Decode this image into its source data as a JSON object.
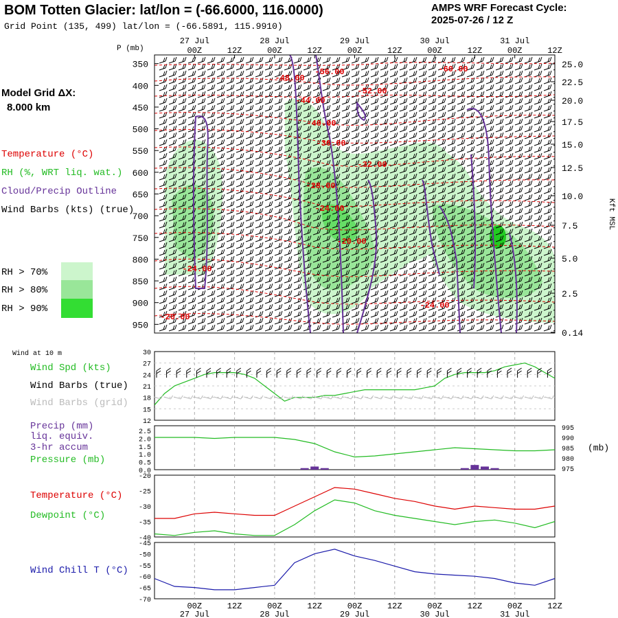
{
  "header": {
    "title": "BOM Totten Glacier:  lat/lon = (-66.6000, 116.0000)",
    "subtitle": "Grid Point (135, 499) lat/lon = (-66.5891, 115.9910)",
    "cycle_line1": "AMPS WRF Forecast Cycle:",
    "cycle_line2": "2025-07-26 / 12  Z"
  },
  "time_axis": {
    "tick_labels": [
      "00Z",
      "12Z",
      "00Z",
      "12Z",
      "00Z",
      "12Z",
      "00Z",
      "12Z",
      "00Z",
      "12Z"
    ],
    "date_labels": [
      "27 Jul",
      "28 Jul",
      "29 Jul",
      "30 Jul",
      "31 Jul"
    ]
  },
  "left_legend": {
    "model_grid_line1": "Model Grid ΔX:",
    "model_grid_line2": "8.000 km",
    "temperature": "Temperature (°C)",
    "rh": "RH (%, WRT liq. wat.)",
    "cloud": "Cloud/Precip Outline",
    "wind_barbs": "Wind Barbs (kts) (true)",
    "rh70": "RH > 70%",
    "rh80": "RH > 80%",
    "rh90": "RH > 90%"
  },
  "colors": {
    "rh70": "#ccf5cc",
    "rh80": "#99e699",
    "rh90": "#33dd33",
    "temperature": "#dd0000",
    "cloud": "#663399",
    "wind_speed": "#22bb22",
    "dewpoint": "#22bb22",
    "wind_chill": "#1a1aaa",
    "precip": "#663399"
  },
  "chart_data": [
    {
      "type": "cross-section",
      "ylabel": "P (mb)",
      "ylabel_right": "Kft MSL",
      "ylim": [
        970,
        330
      ],
      "pressure_ticks": [
        "350",
        "400",
        "450",
        "500",
        "550",
        "600",
        "650",
        "700",
        "750",
        "800",
        "850",
        "900",
        "950"
      ],
      "height_ticks": [
        "25.0",
        "22.5",
        "20.0",
        "17.5",
        "15.0",
        "12.5",
        "10.0",
        "7.5",
        "5.0",
        "2.5",
        "0.14"
      ],
      "temperature_labels": [
        "-60.00",
        "-56.00",
        "-52.00",
        "-48.00",
        "-44.00",
        "-40.00",
        "-36.00",
        "-32.00",
        "-28.00",
        "-24.00",
        "-20.00",
        "-24.00",
        "-24.00",
        "-20.00"
      ]
    },
    {
      "type": "line",
      "header": "Wind at 10 m",
      "label_speed": "Wind Spd (kts)",
      "label_barbs_true": "Wind Barbs (true)",
      "label_barbs_grid": "Wind Barbs (grid)",
      "ylim": [
        12,
        30
      ],
      "y_ticks": [
        "30",
        "27",
        "24",
        "21",
        "18",
        "15",
        "12"
      ],
      "x_hours": [
        0,
        3,
        6,
        9,
        12,
        15,
        18,
        21,
        24,
        27,
        30,
        33,
        36,
        39,
        42,
        45,
        48,
        51,
        54,
        57,
        60,
        63,
        66,
        69,
        72,
        75,
        78,
        81,
        84,
        87,
        90,
        93,
        96,
        99,
        102,
        105,
        108,
        111,
        114,
        117,
        120
      ],
      "wind_speed": [
        16,
        19,
        21,
        22,
        23,
        24,
        24.5,
        24.5,
        24.5,
        24,
        23,
        21,
        19,
        17,
        18,
        18,
        18,
        18.5,
        18.5,
        19,
        19.5,
        20,
        20,
        20,
        20,
        20,
        20,
        20.5,
        21,
        23,
        24,
        24.5,
        24.5,
        24.5,
        25,
        26,
        26.5,
        27,
        26,
        24.5,
        23
      ]
    },
    {
      "type": "line",
      "label_precip": "Precip (mm)",
      "label_liq": "liq. equiv.",
      "label_accum": "3-hr accum",
      "label_pressure": "Pressure (mb)",
      "ylabel_right": "(mb)",
      "precip_ylim": [
        0,
        2.5
      ],
      "pressure_ylim": [
        975,
        995
      ],
      "y_ticks_left": [
        "2.5",
        "2.0",
        "1.5",
        "1.0",
        "0.5",
        "0.0"
      ],
      "y_ticks_right": [
        "995",
        "990",
        "985",
        "980",
        "975"
      ],
      "x_hours": [
        0,
        6,
        12,
        18,
        24,
        30,
        36,
        42,
        48,
        54,
        60,
        66,
        72,
        78,
        84,
        90,
        96,
        102,
        108,
        114,
        120
      ],
      "pressure": [
        990,
        990,
        990,
        989.5,
        990,
        990,
        990,
        989,
        987,
        983,
        980.5,
        981,
        982,
        983,
        984,
        985,
        984.5,
        984,
        983.5,
        983.5,
        984
      ],
      "precip_bars": [
        {
          "hour": 45,
          "value": 0.1
        },
        {
          "hour": 48,
          "value": 0.2
        },
        {
          "hour": 51,
          "value": 0.1
        },
        {
          "hour": 93,
          "value": 0.1
        },
        {
          "hour": 96,
          "value": 0.3
        },
        {
          "hour": 99,
          "value": 0.2
        },
        {
          "hour": 102,
          "value": 0.1
        }
      ]
    },
    {
      "type": "line",
      "label_temp": "Temperature (°C)",
      "label_dew": "Dewpoint (°C)",
      "ylim": [
        -40,
        -20
      ],
      "y_ticks": [
        "-20",
        "-25",
        "-30",
        "-35",
        "-40"
      ],
      "x_hours": [
        0,
        6,
        12,
        18,
        24,
        30,
        36,
        42,
        48,
        54,
        60,
        66,
        72,
        78,
        84,
        90,
        96,
        102,
        108,
        114,
        120
      ],
      "temperature": [
        -34,
        -34,
        -32.5,
        -32,
        -32.5,
        -33,
        -33,
        -30,
        -27,
        -24,
        -24.5,
        -26,
        -27.5,
        -28.5,
        -30,
        -31,
        -30,
        -30.5,
        -31,
        -31,
        -30
      ],
      "dewpoint": [
        -39,
        -39.5,
        -38.5,
        -38,
        -39,
        -39.5,
        -39.5,
        -36,
        -31.5,
        -28,
        -29,
        -31.5,
        -33,
        -34,
        -35,
        -36,
        -35,
        -34.5,
        -35.5,
        -37,
        -35
      ]
    },
    {
      "type": "line",
      "label": "Wind Chill T (°C)",
      "ylim": [
        -70,
        -45
      ],
      "y_ticks": [
        "-45",
        "-50",
        "-55",
        "-60",
        "-65",
        "-70"
      ],
      "x_hours": [
        0,
        6,
        12,
        18,
        24,
        30,
        36,
        42,
        48,
        54,
        60,
        66,
        72,
        78,
        84,
        90,
        96,
        102,
        108,
        114,
        120
      ],
      "wind_chill": [
        -61,
        -64.5,
        -65,
        -66,
        -66,
        -65,
        -64,
        -54,
        -50,
        -48,
        -51,
        -53,
        -55.5,
        -58,
        -59,
        -59.5,
        -60,
        -61,
        -63,
        -64,
        -61
      ]
    }
  ]
}
